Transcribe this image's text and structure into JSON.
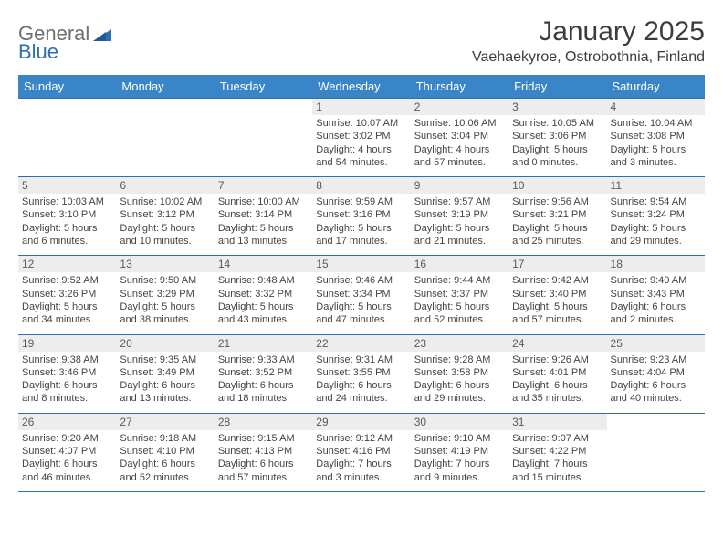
{
  "logo": {
    "word1": "General",
    "word2": "Blue"
  },
  "title": "January 2025",
  "location": "Vaehaekyroe, Ostrobothnia, Finland",
  "colors": {
    "header_bg": "#3a85c8",
    "header_text": "#ffffff",
    "border": "#2f6fb0",
    "daynum_bg": "#ededed",
    "text": "#3d3d3d",
    "logo_gray": "#6f6f6f",
    "logo_blue": "#2f6fb0",
    "background": "#ffffff"
  },
  "typography": {
    "title_fontsize": 30,
    "location_fontsize": 16,
    "header_fontsize": 13,
    "daynum_fontsize": 12,
    "info_fontsize": 11
  },
  "weekdays": [
    "Sunday",
    "Monday",
    "Tuesday",
    "Wednesday",
    "Thursday",
    "Friday",
    "Saturday"
  ],
  "weeks": [
    [
      null,
      null,
      null,
      {
        "n": "1",
        "sr": "Sunrise: 10:07 AM",
        "ss": "Sunset: 3:02 PM",
        "dl1": "Daylight: 4 hours",
        "dl2": "and 54 minutes."
      },
      {
        "n": "2",
        "sr": "Sunrise: 10:06 AM",
        "ss": "Sunset: 3:04 PM",
        "dl1": "Daylight: 4 hours",
        "dl2": "and 57 minutes."
      },
      {
        "n": "3",
        "sr": "Sunrise: 10:05 AM",
        "ss": "Sunset: 3:06 PM",
        "dl1": "Daylight: 5 hours",
        "dl2": "and 0 minutes."
      },
      {
        "n": "4",
        "sr": "Sunrise: 10:04 AM",
        "ss": "Sunset: 3:08 PM",
        "dl1": "Daylight: 5 hours",
        "dl2": "and 3 minutes."
      }
    ],
    [
      {
        "n": "5",
        "sr": "Sunrise: 10:03 AM",
        "ss": "Sunset: 3:10 PM",
        "dl1": "Daylight: 5 hours",
        "dl2": "and 6 minutes."
      },
      {
        "n": "6",
        "sr": "Sunrise: 10:02 AM",
        "ss": "Sunset: 3:12 PM",
        "dl1": "Daylight: 5 hours",
        "dl2": "and 10 minutes."
      },
      {
        "n": "7",
        "sr": "Sunrise: 10:00 AM",
        "ss": "Sunset: 3:14 PM",
        "dl1": "Daylight: 5 hours",
        "dl2": "and 13 minutes."
      },
      {
        "n": "8",
        "sr": "Sunrise: 9:59 AM",
        "ss": "Sunset: 3:16 PM",
        "dl1": "Daylight: 5 hours",
        "dl2": "and 17 minutes."
      },
      {
        "n": "9",
        "sr": "Sunrise: 9:57 AM",
        "ss": "Sunset: 3:19 PM",
        "dl1": "Daylight: 5 hours",
        "dl2": "and 21 minutes."
      },
      {
        "n": "10",
        "sr": "Sunrise: 9:56 AM",
        "ss": "Sunset: 3:21 PM",
        "dl1": "Daylight: 5 hours",
        "dl2": "and 25 minutes."
      },
      {
        "n": "11",
        "sr": "Sunrise: 9:54 AM",
        "ss": "Sunset: 3:24 PM",
        "dl1": "Daylight: 5 hours",
        "dl2": "and 29 minutes."
      }
    ],
    [
      {
        "n": "12",
        "sr": "Sunrise: 9:52 AM",
        "ss": "Sunset: 3:26 PM",
        "dl1": "Daylight: 5 hours",
        "dl2": "and 34 minutes."
      },
      {
        "n": "13",
        "sr": "Sunrise: 9:50 AM",
        "ss": "Sunset: 3:29 PM",
        "dl1": "Daylight: 5 hours",
        "dl2": "and 38 minutes."
      },
      {
        "n": "14",
        "sr": "Sunrise: 9:48 AM",
        "ss": "Sunset: 3:32 PM",
        "dl1": "Daylight: 5 hours",
        "dl2": "and 43 minutes."
      },
      {
        "n": "15",
        "sr": "Sunrise: 9:46 AM",
        "ss": "Sunset: 3:34 PM",
        "dl1": "Daylight: 5 hours",
        "dl2": "and 47 minutes."
      },
      {
        "n": "16",
        "sr": "Sunrise: 9:44 AM",
        "ss": "Sunset: 3:37 PM",
        "dl1": "Daylight: 5 hours",
        "dl2": "and 52 minutes."
      },
      {
        "n": "17",
        "sr": "Sunrise: 9:42 AM",
        "ss": "Sunset: 3:40 PM",
        "dl1": "Daylight: 5 hours",
        "dl2": "and 57 minutes."
      },
      {
        "n": "18",
        "sr": "Sunrise: 9:40 AM",
        "ss": "Sunset: 3:43 PM",
        "dl1": "Daylight: 6 hours",
        "dl2": "and 2 minutes."
      }
    ],
    [
      {
        "n": "19",
        "sr": "Sunrise: 9:38 AM",
        "ss": "Sunset: 3:46 PM",
        "dl1": "Daylight: 6 hours",
        "dl2": "and 8 minutes."
      },
      {
        "n": "20",
        "sr": "Sunrise: 9:35 AM",
        "ss": "Sunset: 3:49 PM",
        "dl1": "Daylight: 6 hours",
        "dl2": "and 13 minutes."
      },
      {
        "n": "21",
        "sr": "Sunrise: 9:33 AM",
        "ss": "Sunset: 3:52 PM",
        "dl1": "Daylight: 6 hours",
        "dl2": "and 18 minutes."
      },
      {
        "n": "22",
        "sr": "Sunrise: 9:31 AM",
        "ss": "Sunset: 3:55 PM",
        "dl1": "Daylight: 6 hours",
        "dl2": "and 24 minutes."
      },
      {
        "n": "23",
        "sr": "Sunrise: 9:28 AM",
        "ss": "Sunset: 3:58 PM",
        "dl1": "Daylight: 6 hours",
        "dl2": "and 29 minutes."
      },
      {
        "n": "24",
        "sr": "Sunrise: 9:26 AM",
        "ss": "Sunset: 4:01 PM",
        "dl1": "Daylight: 6 hours",
        "dl2": "and 35 minutes."
      },
      {
        "n": "25",
        "sr": "Sunrise: 9:23 AM",
        "ss": "Sunset: 4:04 PM",
        "dl1": "Daylight: 6 hours",
        "dl2": "and 40 minutes."
      }
    ],
    [
      {
        "n": "26",
        "sr": "Sunrise: 9:20 AM",
        "ss": "Sunset: 4:07 PM",
        "dl1": "Daylight: 6 hours",
        "dl2": "and 46 minutes."
      },
      {
        "n": "27",
        "sr": "Sunrise: 9:18 AM",
        "ss": "Sunset: 4:10 PM",
        "dl1": "Daylight: 6 hours",
        "dl2": "and 52 minutes."
      },
      {
        "n": "28",
        "sr": "Sunrise: 9:15 AM",
        "ss": "Sunset: 4:13 PM",
        "dl1": "Daylight: 6 hours",
        "dl2": "and 57 minutes."
      },
      {
        "n": "29",
        "sr": "Sunrise: 9:12 AM",
        "ss": "Sunset: 4:16 PM",
        "dl1": "Daylight: 7 hours",
        "dl2": "and 3 minutes."
      },
      {
        "n": "30",
        "sr": "Sunrise: 9:10 AM",
        "ss": "Sunset: 4:19 PM",
        "dl1": "Daylight: 7 hours",
        "dl2": "and 9 minutes."
      },
      {
        "n": "31",
        "sr": "Sunrise: 9:07 AM",
        "ss": "Sunset: 4:22 PM",
        "dl1": "Daylight: 7 hours",
        "dl2": "and 15 minutes."
      },
      null
    ]
  ]
}
